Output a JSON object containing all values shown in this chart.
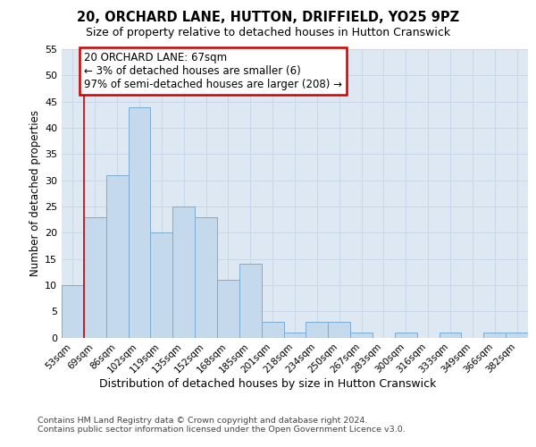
{
  "title": "20, ORCHARD LANE, HUTTON, DRIFFIELD, YO25 9PZ",
  "subtitle": "Size of property relative to detached houses in Hutton Cranswick",
  "xlabel": "Distribution of detached houses by size in Hutton Cranswick",
  "ylabel": "Number of detached properties",
  "categories": [
    "53sqm",
    "69sqm",
    "86sqm",
    "102sqm",
    "119sqm",
    "135sqm",
    "152sqm",
    "168sqm",
    "185sqm",
    "201sqm",
    "218sqm",
    "234sqm",
    "250sqm",
    "267sqm",
    "283sqm",
    "300sqm",
    "316sqm",
    "333sqm",
    "349sqm",
    "366sqm",
    "382sqm"
  ],
  "values": [
    10,
    23,
    31,
    44,
    20,
    25,
    23,
    11,
    14,
    3,
    1,
    3,
    3,
    1,
    0,
    1,
    0,
    1,
    0,
    1,
    1
  ],
  "bar_color": "#c5d9ed",
  "bar_edge_color": "#7aadd4",
  "annotation_line1": "20 ORCHARD LANE: 67sqm",
  "annotation_line2": "← 3% of detached houses are smaller (6)",
  "annotation_line3": "97% of semi-detached houses are larger (208) →",
  "annotation_box_edge_color": "#cc0000",
  "vline_color": "#cc0000",
  "ylim_max": 55,
  "yticks": [
    0,
    5,
    10,
    15,
    20,
    25,
    30,
    35,
    40,
    45,
    50,
    55
  ],
  "grid_color": "#c8d8e8",
  "footer_text": "Contains HM Land Registry data © Crown copyright and database right 2024.\nContains public sector information licensed under the Open Government Licence v3.0.",
  "bg_color": "#ffffff",
  "plot_bg_color": "#dde8f3"
}
